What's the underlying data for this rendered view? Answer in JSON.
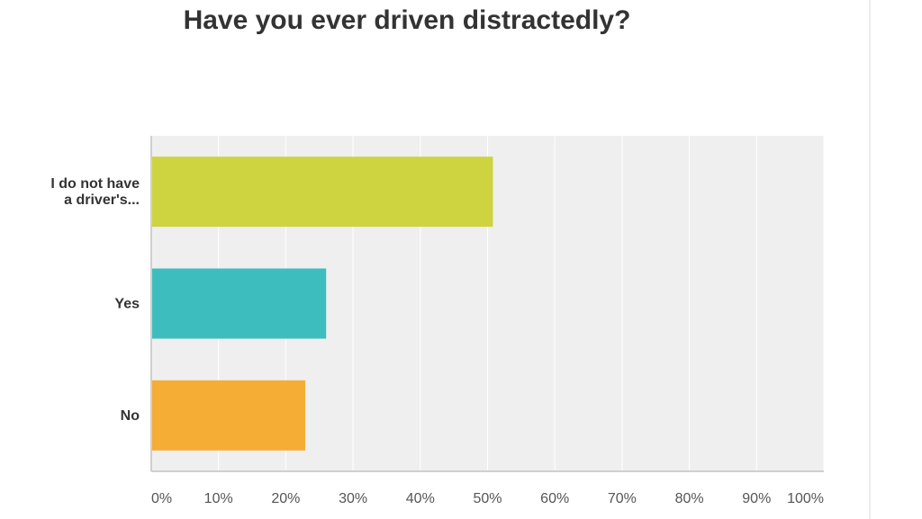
{
  "chart_data": {
    "type": "bar",
    "orientation": "horizontal",
    "title": "Have you ever driven distractedly?",
    "categories": [
      [
        "I do not have",
        "a driver's..."
      ],
      [
        "Yes"
      ],
      [
        "No"
      ]
    ],
    "values": [
      50.8,
      26,
      22.9
    ],
    "value_unit": "percent",
    "colors": [
      "#cdd43f",
      "#3ebdbf",
      "#f5ad36"
    ],
    "xlim": [
      0,
      100
    ],
    "x_ticks": [
      0,
      10,
      20,
      30,
      40,
      50,
      60,
      70,
      80,
      90,
      100
    ],
    "x_tick_labels": [
      "0%",
      "10%",
      "20%",
      "30%",
      "40%",
      "50%",
      "60%",
      "70%",
      "80%",
      "90%",
      "100%"
    ],
    "grid": true,
    "plot_background": "#efefef",
    "gridline_color": "#ffffff",
    "legend": "none"
  }
}
